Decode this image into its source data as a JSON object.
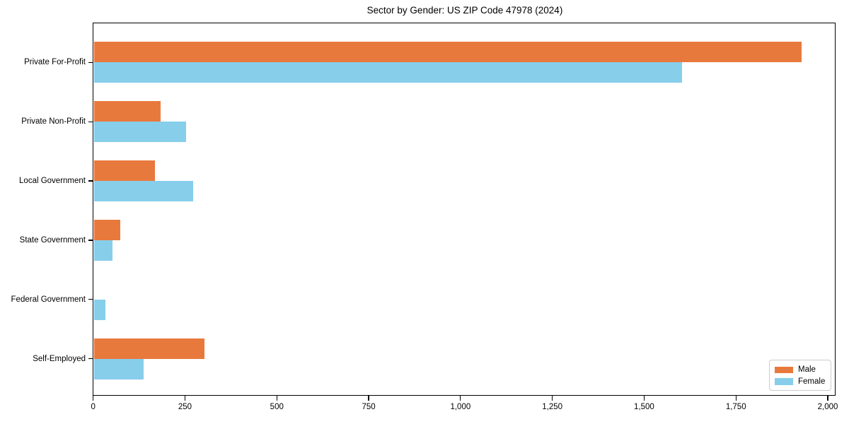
{
  "chart_data": {
    "type": "bar",
    "orientation": "horizontal",
    "title": "Sector by Gender: US ZIP Code 47978 (2024)",
    "categories": [
      "Private For-Profit",
      "Private Non-Profit",
      "Local Government",
      "State Government",
      "Federal Government",
      "Self-Employed"
    ],
    "series": [
      {
        "name": "Male",
        "color": "#e8793d",
        "values": [
          1925,
          180,
          165,
          70,
          0,
          300
        ]
      },
      {
        "name": "Female",
        "color": "#87ceeb",
        "values": [
          1600,
          250,
          270,
          50,
          30,
          135
        ]
      }
    ],
    "xlim": [
      0,
      2020
    ],
    "xticks": [
      0,
      250,
      500,
      750,
      1000,
      1250,
      1500,
      1750,
      2000
    ],
    "xtick_labels": [
      "0",
      "250",
      "500",
      "750",
      "1,000",
      "1,250",
      "1,500",
      "1,750",
      "2,000"
    ],
    "xlabel": "",
    "ylabel": "",
    "grid": false,
    "legend": {
      "position": "lower right",
      "entries": [
        "Male",
        "Female"
      ]
    },
    "colors": {
      "axis": "#000000",
      "background": "#ffffff",
      "legend_border": "#cccccc"
    }
  }
}
